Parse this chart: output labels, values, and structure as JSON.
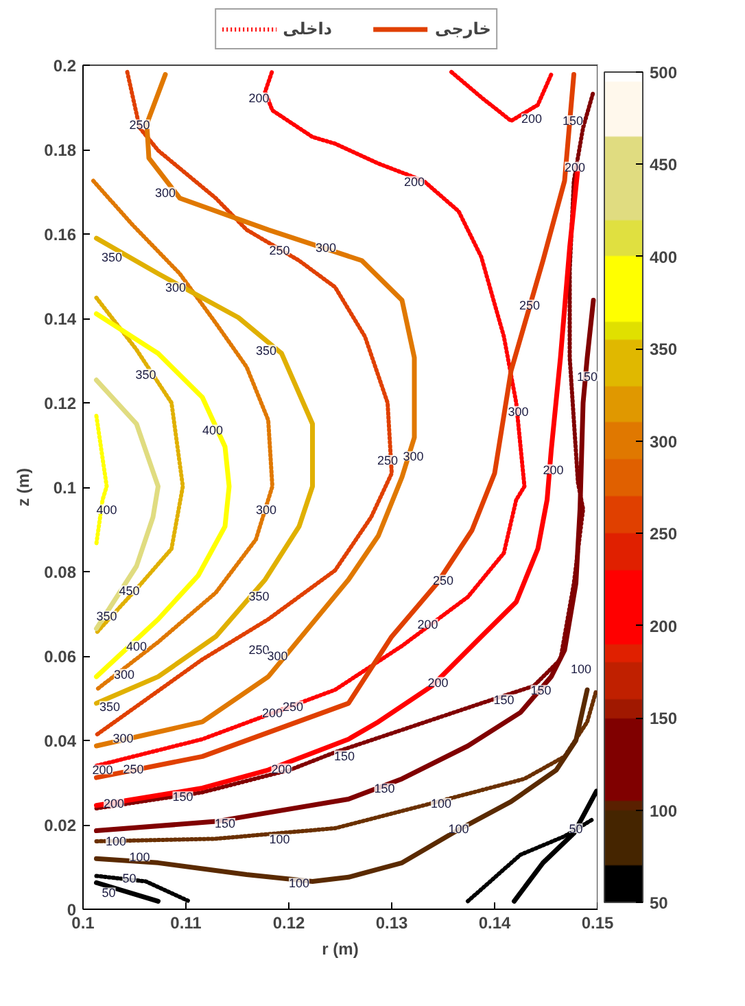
{
  "chart_data": {
    "type": "line",
    "xlabel": "r (m)",
    "ylabel": "z (m)",
    "xlim": [
      0.1,
      0.15
    ],
    "xticks": [
      0.1,
      0.11,
      0.12,
      0.13,
      0.14,
      0.15
    ],
    "ylim": [
      0,
      0.2
    ],
    "yticks": [
      0,
      0.02,
      0.04,
      0.06,
      0.08,
      0.1,
      0.12,
      0.14,
      0.16,
      0.18,
      0.2
    ],
    "clim": [
      50,
      500
    ],
    "cticks": [
      50,
      100,
      150,
      200,
      250,
      300,
      350,
      400,
      450,
      500
    ],
    "legend": "top",
    "series": [
      {
        "line_style": "dotted",
        "color": "#000000",
        "x": [
          0.1013,
          0.1061,
          0.1103
        ],
        "values": [
          0.0079,
          0.0066,
          0.0019
        ]
      },
      {
        "line_style": "dotted",
        "color": "#000000",
        "x": [
          0.1374,
          0.1425,
          0.1468,
          0.1496
        ],
        "values": [
          0.0019,
          0.0129,
          0.0173,
          0.0214
        ]
      },
      {
        "line_style": "dotted",
        "color": "#6a3000",
        "x": [
          0.1013,
          0.1129,
          0.1245,
          0.1331,
          0.1429,
          0.1468,
          0.149,
          0.1499
        ],
        "values": [
          0.0161,
          0.0167,
          0.0192,
          0.0246,
          0.0309,
          0.0362,
          0.0444,
          0.052
        ]
      },
      {
        "line_style": "dotted",
        "color": "#800000",
        "x": [
          0.1013,
          0.1116,
          0.1202,
          0.1245,
          0.131,
          0.1387,
          0.1438,
          0.1464,
          0.1477,
          0.1486,
          0.1481,
          0.1473,
          0.1473,
          0.1477,
          0.1486,
          0.1496
        ],
        "values": [
          0.0239,
          0.0277,
          0.0331,
          0.0372,
          0.0425,
          0.0488,
          0.0529,
          0.0592,
          0.0772,
          0.0948,
          0.1011,
          0.1307,
          0.1515,
          0.1726,
          0.1852,
          0.1937
        ]
      },
      {
        "name": "داخلی",
        "line_style": "dotted",
        "color": "#ff0000",
        "x": [
          0.1013,
          0.1116,
          0.1245,
          0.131,
          0.1374,
          0.1409,
          0.1421,
          0.1429,
          0.1421,
          0.1409,
          0.1387,
          0.1365,
          0.1331,
          0.1287,
          0.1245,
          0.1223,
          0.1184,
          0.1177,
          0.1184
        ],
        "values": [
          0.034,
          0.0403,
          0.052,
          0.0624,
          0.074,
          0.0844,
          0.097,
          0.1002,
          0.12,
          0.1357,
          0.1546,
          0.1654,
          0.1726,
          0.1767,
          0.1814,
          0.183,
          0.1893,
          0.1937,
          0.1987
        ]
      },
      {
        "line_style": "dotted",
        "color": "#ff0000",
        "x": [
          0.1358,
          0.1387,
          0.1416,
          0.1442,
          0.1455
        ],
        "values": [
          0.1984,
          0.1924,
          0.1868,
          0.1906,
          0.1978
        ]
      },
      {
        "line_style": "dotted",
        "color": "#e04000",
        "x": [
          0.1043,
          0.1055,
          0.1073,
          0.1129,
          0.1159,
          0.121,
          0.1245,
          0.1274,
          0.1296,
          0.13,
          0.128,
          0.1245,
          0.118,
          0.1116,
          0.1013
        ],
        "values": [
          0.1984,
          0.1852,
          0.1798,
          0.1685,
          0.161,
          0.1537,
          0.1474,
          0.1357,
          0.12,
          0.1033,
          0.0929,
          0.0803,
          0.0687,
          0.0592,
          0.0413
        ]
      },
      {
        "line_style": "dotted",
        "color": "#e07800",
        "x": [
          0.101,
          0.1048,
          0.1094,
          0.1129,
          0.1159,
          0.118,
          0.1184,
          0.1168,
          0.1129,
          0.1073,
          0.1013
        ],
        "values": [
          0.1726,
          0.1622,
          0.1506,
          0.1389,
          0.1285,
          0.1159,
          0.1002,
          0.0876,
          0.075,
          0.0633,
          0.052
        ]
      },
      {
        "line_style": "dotted",
        "color": "#e0b000",
        "x": [
          0.1013,
          0.1052,
          0.1086,
          0.1097,
          0.1086,
          0.1052,
          0.1013
        ],
        "values": [
          0.1449,
          0.1326,
          0.12,
          0.1002,
          0.0854,
          0.0759,
          0.0655
        ]
      },
      {
        "line_style": "dotted",
        "color": "#ffff00",
        "x": [
          0.1013,
          0.1023,
          0.1019,
          0.1013
        ],
        "values": [
          0.1169,
          0.1002,
          0.097,
          0.0866
        ]
      },
      {
        "line_style": "solid",
        "color": "#000000",
        "x": [
          0.1013,
          0.1073
        ],
        "values": [
          0.0063,
          0.0019
        ]
      },
      {
        "line_style": "solid",
        "color": "#000000",
        "x": [
          0.1419,
          0.1447,
          0.1477,
          0.1499
        ],
        "values": [
          0.0019,
          0.011,
          0.018,
          0.028
        ]
      },
      {
        "line_style": "solid",
        "color": "#5a2a00",
        "x": [
          0.1013,
          0.1073,
          0.1159,
          0.1223,
          0.1258,
          0.131,
          0.1361,
          0.1416,
          0.146,
          0.1479,
          0.149
        ],
        "values": [
          0.012,
          0.011,
          0.0082,
          0.0066,
          0.0076,
          0.011,
          0.0183,
          0.0255,
          0.033,
          0.04,
          0.052
        ]
      },
      {
        "line_style": "solid",
        "color": "#800000",
        "x": [
          0.1013,
          0.1129,
          0.1258,
          0.131,
          0.1374,
          0.1425,
          0.1455,
          0.1468,
          0.1479,
          0.1483,
          0.1486,
          0.149,
          0.1496
        ],
        "values": [
          0.0186,
          0.0208,
          0.0261,
          0.0309,
          0.0387,
          0.0466,
          0.0551,
          0.0614,
          0.0772,
          0.0948,
          0.12,
          0.1307,
          0.1443
        ]
      },
      {
        "line_style": "solid",
        "color": "#ff0000",
        "x": [
          0.1013,
          0.1116,
          0.118,
          0.1258,
          0.1287,
          0.1339,
          0.1387,
          0.1421,
          0.1442,
          0.1451,
          0.1455,
          0.1464,
          0.1473,
          0.1481
        ],
        "values": [
          0.0246,
          0.0287,
          0.033,
          0.0403,
          0.0444,
          0.0529,
          0.0646,
          0.0728,
          0.0854,
          0.097,
          0.1087,
          0.1307,
          0.1569,
          0.1757
        ]
      },
      {
        "name": "خارجی",
        "line_style": "solid",
        "color": "#e04000",
        "x": [
          0.1013,
          0.1116,
          0.1258,
          0.13,
          0.1344,
          0.1378,
          0.14,
          0.1416,
          0.1447,
          0.1468,
          0.1477
        ],
        "values": [
          0.0312,
          0.0362,
          0.0488,
          0.0646,
          0.0772,
          0.0898,
          0.1033,
          0.1276,
          0.1537,
          0.1726,
          0.1978
        ]
      },
      {
        "line_style": "solid",
        "color": "#e07800",
        "x": [
          0.1013,
          0.1116,
          0.118,
          0.1258,
          0.1287,
          0.131,
          0.1322,
          0.1322,
          0.131,
          0.1271,
          0.118,
          0.1094,
          0.1064,
          0.1062,
          0.108
        ],
        "values": [
          0.0387,
          0.0444,
          0.0551,
          0.0781,
          0.0885,
          0.1024,
          0.1118,
          0.1307,
          0.1443,
          0.1537,
          0.161,
          0.1685,
          0.178,
          0.1861,
          0.1978
        ]
      },
      {
        "line_style": "solid",
        "color": "#e0b000",
        "x": [
          0.1013,
          0.1073,
          0.1151,
          0.1193,
          0.1223,
          0.1223,
          0.121,
          0.1177,
          0.1129,
          0.1073,
          0.1013
        ],
        "values": [
          0.159,
          0.1506,
          0.1402,
          0.1317,
          0.115,
          0.1002,
          0.0907,
          0.0781,
          0.0646,
          0.0551,
          0.0488
        ]
      },
      {
        "line_style": "solid",
        "color": "#ffff00",
        "x": [
          0.1013,
          0.1073,
          0.1116,
          0.1138,
          0.1142,
          0.1138,
          0.1112,
          0.1073,
          0.1013
        ],
        "values": [
          0.1411,
          0.1317,
          0.1213,
          0.1096,
          0.1002,
          0.0907,
          0.0791,
          0.0687,
          0.0551
        ]
      },
      {
        "line_style": "solid",
        "color": "#e0dc80",
        "x": [
          0.1013,
          0.1052,
          0.1073,
          0.1068,
          0.1052,
          0.1013
        ],
        "values": [
          0.1254,
          0.115,
          0.1002,
          0.0929,
          0.0813,
          0.0665
        ]
      }
    ],
    "annotations": [
      {
        "text": "250",
        "x": 0.1055,
        "y": 0.186
      },
      {
        "text": "200",
        "x": 0.1171,
        "y": 0.1924
      },
      {
        "text": "200",
        "x": 0.1436,
        "y": 0.1874
      },
      {
        "text": "200",
        "x": 0.1322,
        "y": 0.1726
      },
      {
        "text": "300",
        "x": 0.108,
        "y": 0.17
      },
      {
        "text": "250",
        "x": 0.1191,
        "y": 0.1562
      },
      {
        "text": "300",
        "x": 0.1236,
        "y": 0.1569
      },
      {
        "text": "350",
        "x": 0.1028,
        "y": 0.1546
      },
      {
        "text": "300",
        "x": 0.109,
        "y": 0.1474
      },
      {
        "text": "350",
        "x": 0.1178,
        "y": 0.1326
      },
      {
        "text": "350",
        "x": 0.1061,
        "y": 0.1269
      },
      {
        "text": "400",
        "x": 0.1126,
        "y": 0.1137
      },
      {
        "text": "400",
        "x": 0.1023,
        "y": 0.0948
      },
      {
        "text": "300",
        "x": 0.1178,
        "y": 0.0948
      },
      {
        "text": "250",
        "x": 0.1434,
        "y": 0.1433
      },
      {
        "text": "300",
        "x": 0.1423,
        "y": 0.1181
      },
      {
        "text": "250",
        "x": 0.1296,
        "y": 0.1065
      },
      {
        "text": "300",
        "x": 0.1321,
        "y": 0.1074
      },
      {
        "text": "200",
        "x": 0.1457,
        "y": 0.1043
      },
      {
        "text": "150",
        "x": 0.149,
        "y": 0.1263
      },
      {
        "text": "150",
        "x": 0.1476,
        "y": 0.187
      },
      {
        "text": "200",
        "x": 0.1478,
        "y": 0.176
      },
      {
        "text": "450",
        "x": 0.1045,
        "y": 0.0756
      },
      {
        "text": "350",
        "x": 0.1023,
        "y": 0.0696
      },
      {
        "text": "400",
        "x": 0.1052,
        "y": 0.0625
      },
      {
        "text": "300",
        "x": 0.104,
        "y": 0.0558
      },
      {
        "text": "350",
        "x": 0.1026,
        "y": 0.0482
      },
      {
        "text": "300",
        "x": 0.1039,
        "y": 0.0406
      },
      {
        "text": "200",
        "x": 0.1019,
        "y": 0.0331
      },
      {
        "text": "250",
        "x": 0.1049,
        "y": 0.0334
      },
      {
        "text": "200",
        "x": 0.103,
        "y": 0.0252
      },
      {
        "text": "150",
        "x": 0.1097,
        "y": 0.0268
      },
      {
        "text": "150",
        "x": 0.1138,
        "y": 0.0205
      },
      {
        "text": "100",
        "x": 0.1032,
        "y": 0.0162
      },
      {
        "text": "100",
        "x": 0.1055,
        "y": 0.0125
      },
      {
        "text": "50",
        "x": 0.1045,
        "y": 0.0075
      },
      {
        "text": "50",
        "x": 0.1025,
        "y": 0.004
      },
      {
        "text": "100",
        "x": 0.1191,
        "y": 0.0167
      },
      {
        "text": "100",
        "x": 0.121,
        "y": 0.0063
      },
      {
        "text": "200",
        "x": 0.1193,
        "y": 0.0334
      },
      {
        "text": "200",
        "x": 0.1184,
        "y": 0.0466
      },
      {
        "text": "250",
        "x": 0.1204,
        "y": 0.0482
      },
      {
        "text": "350",
        "x": 0.1171,
        "y": 0.0743
      },
      {
        "text": "250",
        "x": 0.1171,
        "y": 0.0617
      },
      {
        "text": "300",
        "x": 0.1189,
        "y": 0.0602
      },
      {
        "text": "250",
        "x": 0.135,
        "y": 0.0781
      },
      {
        "text": "200",
        "x": 0.1335,
        "y": 0.0677
      },
      {
        "text": "200",
        "x": 0.1345,
        "y": 0.0539
      },
      {
        "text": "150",
        "x": 0.1409,
        "y": 0.0498
      },
      {
        "text": "150",
        "x": 0.1445,
        "y": 0.052
      },
      {
        "text": "150",
        "x": 0.1254,
        "y": 0.0365
      },
      {
        "text": "150",
        "x": 0.1293,
        "y": 0.0287
      },
      {
        "text": "100",
        "x": 0.1348,
        "y": 0.0252
      },
      {
        "text": "100",
        "x": 0.1365,
        "y": 0.0192
      },
      {
        "text": "100",
        "x": 0.1484,
        "y": 0.057
      },
      {
        "text": "50",
        "x": 0.1479,
        "y": 0.0192
      }
    ]
  }
}
